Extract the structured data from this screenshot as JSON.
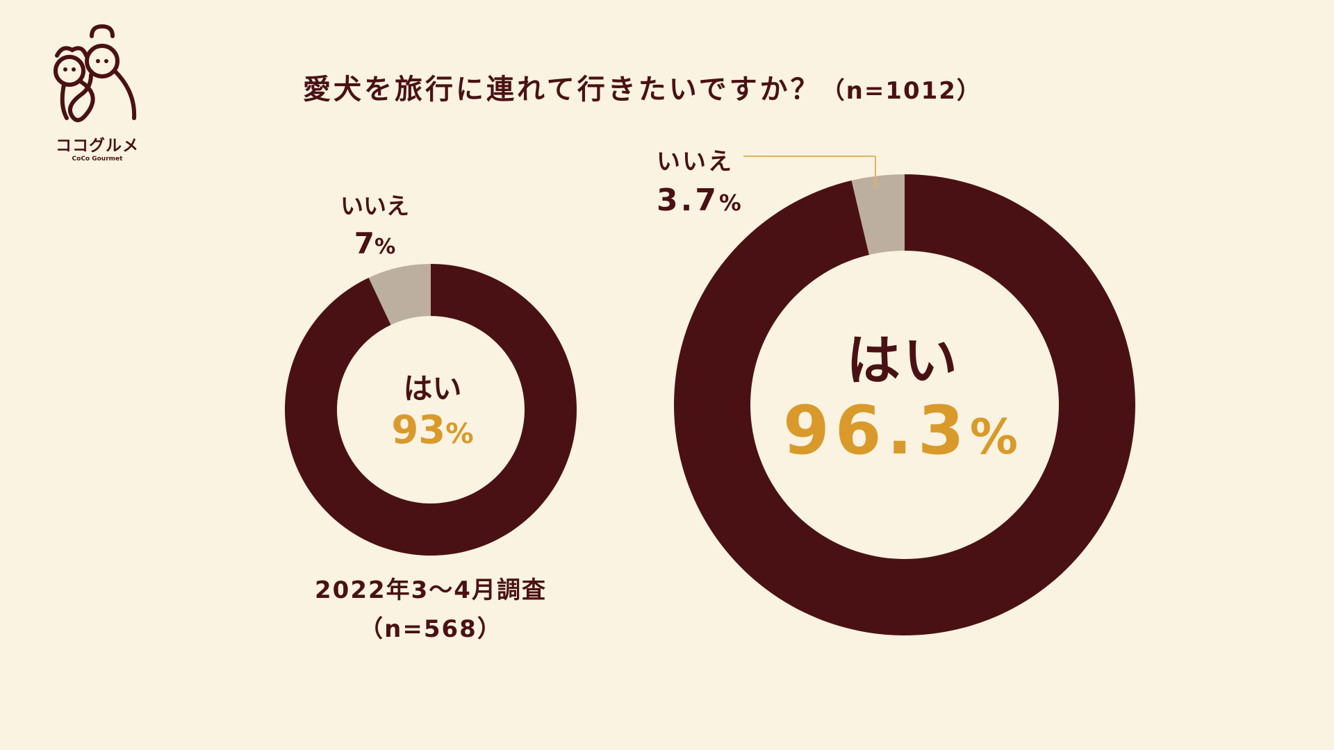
{
  "brand": {
    "name_jp": "ココグルメ",
    "name_en": "CoCo Gourmet"
  },
  "title": {
    "question": "愛犬を旅行に連れて行きたいですか？",
    "sample": "（n=1012）"
  },
  "colors": {
    "background": "#faf3e1",
    "yes": "#4a1114",
    "no": "#bdaf9f",
    "accent": "#d99a2b",
    "leader": "#e0b45e"
  },
  "charts": {
    "small": {
      "no_label": "いいえ",
      "no_value": "7",
      "yes_label": "はい",
      "yes_value": "93",
      "pct": "%",
      "caption_line1": "2022年3〜4月調査",
      "caption_line2": "（n=568）"
    },
    "large": {
      "no_label": "いいえ",
      "no_value": "3.7",
      "yes_label": "はい",
      "yes_value": "96.3",
      "pct": "%"
    }
  },
  "chart_data": [
    {
      "type": "pie",
      "subtitle": "2022年3〜4月調査（n=568）",
      "categories": [
        "はい",
        "いいえ"
      ],
      "values": [
        93,
        7
      ],
      "unit": "%"
    },
    {
      "type": "pie",
      "title": "愛犬を旅行に連れて行きたいですか？（n=1012）",
      "categories": [
        "はい",
        "いいえ"
      ],
      "values": [
        96.3,
        3.7
      ],
      "unit": "%"
    }
  ]
}
